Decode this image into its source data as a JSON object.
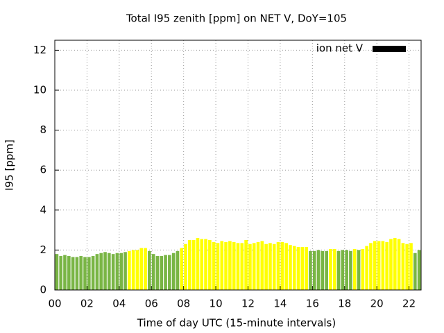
{
  "chart_data": {
    "type": "bar",
    "title": "Total I95 zenith [ppm] on NET V, DoY=105",
    "x_label": "Time of day UTC (15-minute intervals)",
    "y_label": "I95 [ppm]",
    "x": [
      0,
      0.25,
      0.5,
      0.75,
      1,
      1.25,
      1.5,
      1.75,
      2,
      2.25,
      2.5,
      2.75,
      3,
      3.25,
      3.5,
      3.75,
      4,
      4.25,
      4.5,
      4.75,
      5,
      5.25,
      5.5,
      5.75,
      6,
      6.25,
      6.5,
      6.75,
      7,
      7.25,
      7.5,
      7.75,
      8,
      8.25,
      8.5,
      8.75,
      9,
      9.25,
      9.5,
      9.75,
      10,
      10.25,
      10.5,
      10.75,
      11,
      11.25,
      11.5,
      11.75,
      12,
      12.25,
      12.5,
      12.75,
      13,
      13.25,
      13.5,
      13.75,
      14,
      14.25,
      14.5,
      14.75,
      15,
      15.25,
      15.5,
      15.75,
      16,
      16.25,
      16.5,
      16.75,
      17,
      17.25,
      17.5,
      17.75,
      18,
      18.25,
      18.5,
      18.75,
      19,
      19.25,
      19.5,
      19.75,
      20,
      20.25,
      20.5,
      20.75,
      21,
      21.25,
      21.5,
      21.75,
      22,
      22.25,
      22.5
    ],
    "series": [
      {
        "name": "ion net V",
        "color": "#000000",
        "values": [
          1.8,
          1.7,
          1.75,
          1.7,
          1.65,
          1.65,
          1.7,
          1.65,
          1.65,
          1.7,
          1.8,
          1.85,
          1.9,
          1.85,
          1.8,
          1.85,
          1.85,
          1.9,
          1.95,
          2.0,
          2.0,
          2.1,
          2.1,
          1.95,
          1.8,
          1.7,
          1.7,
          1.75,
          1.75,
          1.85,
          1.95,
          2.1,
          2.3,
          2.5,
          2.5,
          2.6,
          2.55,
          2.55,
          2.5,
          2.4,
          2.35,
          2.45,
          2.4,
          2.45,
          2.4,
          2.35,
          2.35,
          2.5,
          2.3,
          2.35,
          2.4,
          2.45,
          2.3,
          2.35,
          2.3,
          2.4,
          2.4,
          2.35,
          2.25,
          2.2,
          2.15,
          2.15,
          2.15,
          1.95,
          1.95,
          2.0,
          1.95,
          1.95,
          2.05,
          2.05,
          1.95,
          2.0,
          2.0,
          1.95,
          2.05,
          2.0,
          2.05,
          2.2,
          2.35,
          2.45,
          2.45,
          2.45,
          2.4,
          2.55,
          2.6,
          2.55,
          2.35,
          2.3,
          2.35,
          1.85,
          2.0
        ],
        "colors": [
          "#79b545",
          "#79b545",
          "#79b545",
          "#79b545",
          "#79b545",
          "#79b545",
          "#79b545",
          "#79b545",
          "#79b545",
          "#79b545",
          "#79b545",
          "#79b545",
          "#79b545",
          "#79b545",
          "#79b545",
          "#79b545",
          "#79b545",
          "#79b545",
          "#ffff00",
          "#ffff00",
          "#ffff00",
          "#ffff00",
          "#ffff00",
          "#79b545",
          "#79b545",
          "#79b545",
          "#79b545",
          "#79b545",
          "#79b545",
          "#79b545",
          "#79b545",
          "#ffff00",
          "#ffff00",
          "#ffff00",
          "#ffff00",
          "#ffff00",
          "#ffff00",
          "#ffff00",
          "#ffff00",
          "#ffff00",
          "#ffff00",
          "#ffff00",
          "#ffff00",
          "#ffff00",
          "#ffff00",
          "#ffff00",
          "#ffff00",
          "#ffff00",
          "#ffff00",
          "#ffff00",
          "#ffff00",
          "#ffff00",
          "#ffff00",
          "#ffff00",
          "#ffff00",
          "#ffff00",
          "#ffff00",
          "#ffff00",
          "#ffff00",
          "#ffff00",
          "#ffff00",
          "#ffff00",
          "#ffff00",
          "#79b545",
          "#79b545",
          "#79b545",
          "#79b545",
          "#79b545",
          "#ffff00",
          "#ffff00",
          "#79b545",
          "#79b545",
          "#79b545",
          "#79b545",
          "#ffff00",
          "#79b545",
          "#ffff00",
          "#ffff00",
          "#ffff00",
          "#ffff00",
          "#ffff00",
          "#ffff00",
          "#ffff00",
          "#ffff00",
          "#ffff00",
          "#ffff00",
          "#ffff00",
          "#ffff00",
          "#ffff00",
          "#79b545",
          "#79b545"
        ]
      }
    ],
    "bar_width": 0.25,
    "xlim": [
      0,
      22.75
    ],
    "xticks": [
      {
        "value": 0,
        "label": "00"
      },
      {
        "value": 2,
        "label": "02"
      },
      {
        "value": 4,
        "label": "04"
      },
      {
        "value": 6,
        "label": "06"
      },
      {
        "value": 8,
        "label": "08"
      },
      {
        "value": 10,
        "label": "10"
      },
      {
        "value": 12,
        "label": "12"
      },
      {
        "value": 14,
        "label": "14"
      },
      {
        "value": 16,
        "label": "16"
      },
      {
        "value": 18,
        "label": "18"
      },
      {
        "value": 20,
        "label": "20"
      },
      {
        "value": 22,
        "label": "22"
      }
    ],
    "ylim": [
      0,
      12.5
    ],
    "yticks": [
      0,
      2,
      4,
      6,
      8,
      10,
      12
    ],
    "grid": true,
    "legend": "top-right"
  }
}
